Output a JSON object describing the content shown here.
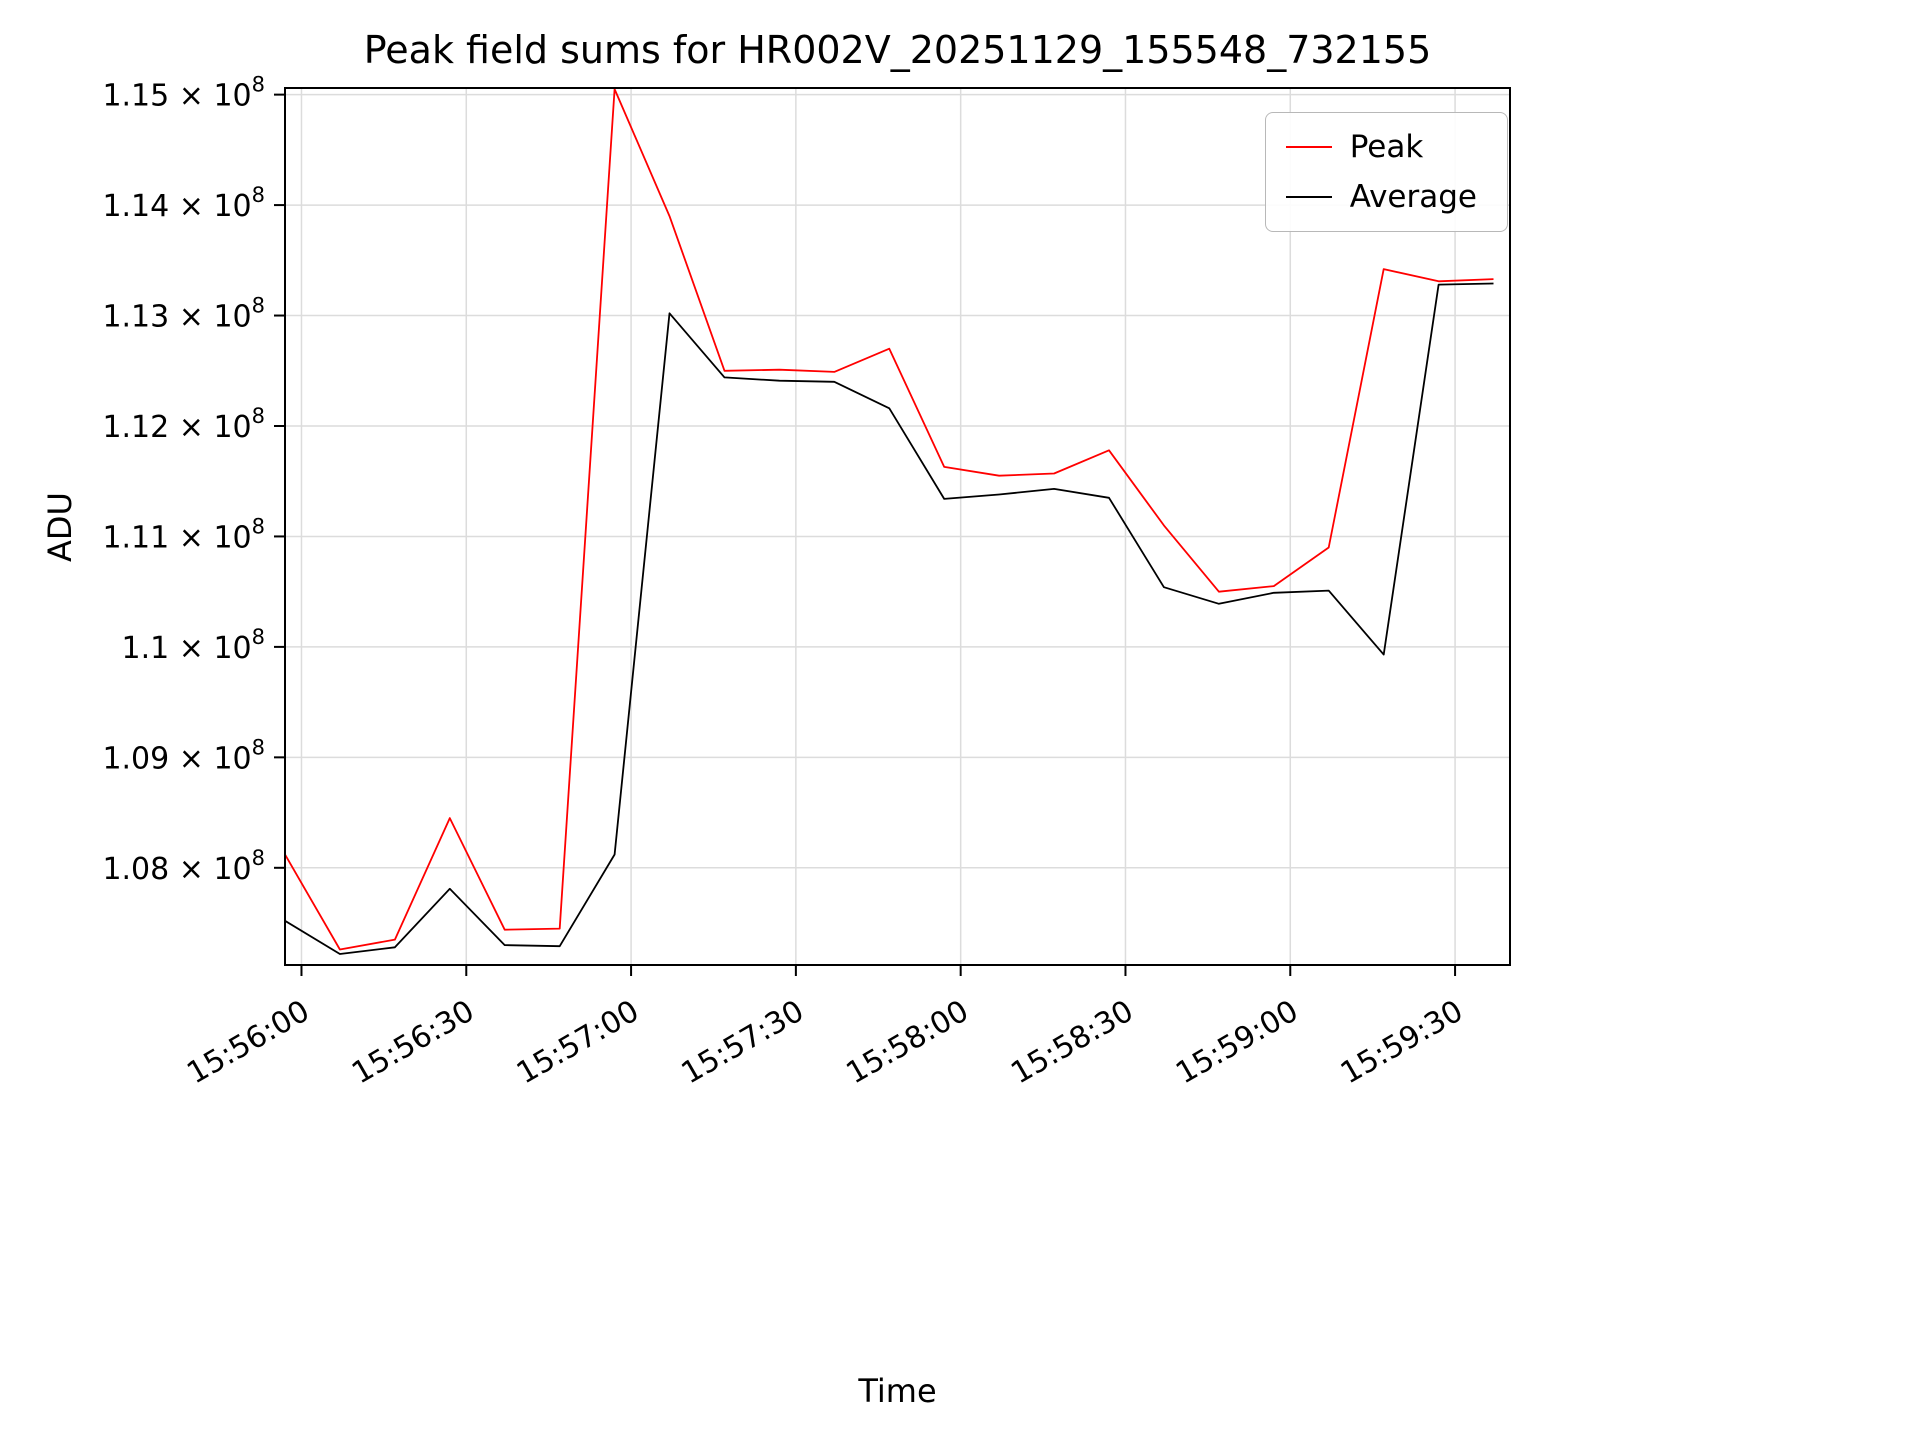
{
  "chart_data": {
    "type": "line",
    "title": "Peak field sums for HR002V_20251129_155548_732155",
    "xlabel": "Time",
    "ylabel": "ADU",
    "grid": true,
    "legend_position": "upper right",
    "value_unit": "ADU, values in units of 1e8",
    "xlim": [
      "15:55:57",
      "15:59:40"
    ],
    "ylim_e8": [
      1.0712,
      1.1506
    ],
    "xticks": [
      "15:56:00",
      "15:56:30",
      "15:57:00",
      "15:57:30",
      "15:58:00",
      "15:58:30",
      "15:59:00",
      "15:59:30"
    ],
    "yticks_e8": [
      1.15,
      1.14,
      1.13,
      1.12,
      1.11,
      1.1,
      1.09,
      1.08
    ],
    "ytick_mantissas": [
      "1.15",
      "1.14",
      "1.13",
      "1.12",
      "1.11",
      "1.1",
      "1.09",
      "1.08"
    ],
    "ytick_exponent": "8",
    "x": [
      "15:55:57",
      "15:56:07",
      "15:56:17",
      "15:56:27",
      "15:56:37",
      "15:56:47",
      "15:56:57",
      "15:57:07",
      "15:57:17",
      "15:57:27",
      "15:57:37",
      "15:57:47",
      "15:57:57",
      "15:58:07",
      "15:58:17",
      "15:58:27",
      "15:58:37",
      "15:58:47",
      "15:58:57",
      "15:59:07",
      "15:59:17",
      "15:59:27",
      "15:59:37"
    ],
    "series": [
      {
        "name": "Peak",
        "color": "#ff0000",
        "values_e8": [
          1.0812,
          1.0726,
          1.0735,
          1.0845,
          1.0744,
          1.0745,
          1.1505,
          1.139,
          1.125,
          1.1251,
          1.1249,
          1.127,
          1.1163,
          1.1155,
          1.1157,
          1.1178,
          1.111,
          1.105,
          1.1055,
          1.109,
          1.1342,
          1.1331,
          1.1333
        ]
      },
      {
        "name": "Average",
        "color": "#000000",
        "values_e8": [
          1.0752,
          1.0722,
          1.0728,
          1.0781,
          1.073,
          1.0729,
          1.0812,
          1.1302,
          1.1244,
          1.1241,
          1.124,
          1.1216,
          1.1134,
          1.1138,
          1.1143,
          1.1135,
          1.1054,
          1.1039,
          1.1049,
          1.1051,
          1.0993,
          1.1328,
          1.1329
        ]
      }
    ],
    "style": {
      "grid_color": "#dcdcdc",
      "spine_color": "#000000",
      "background": "#ffffff",
      "line_width": 1.8
    }
  }
}
